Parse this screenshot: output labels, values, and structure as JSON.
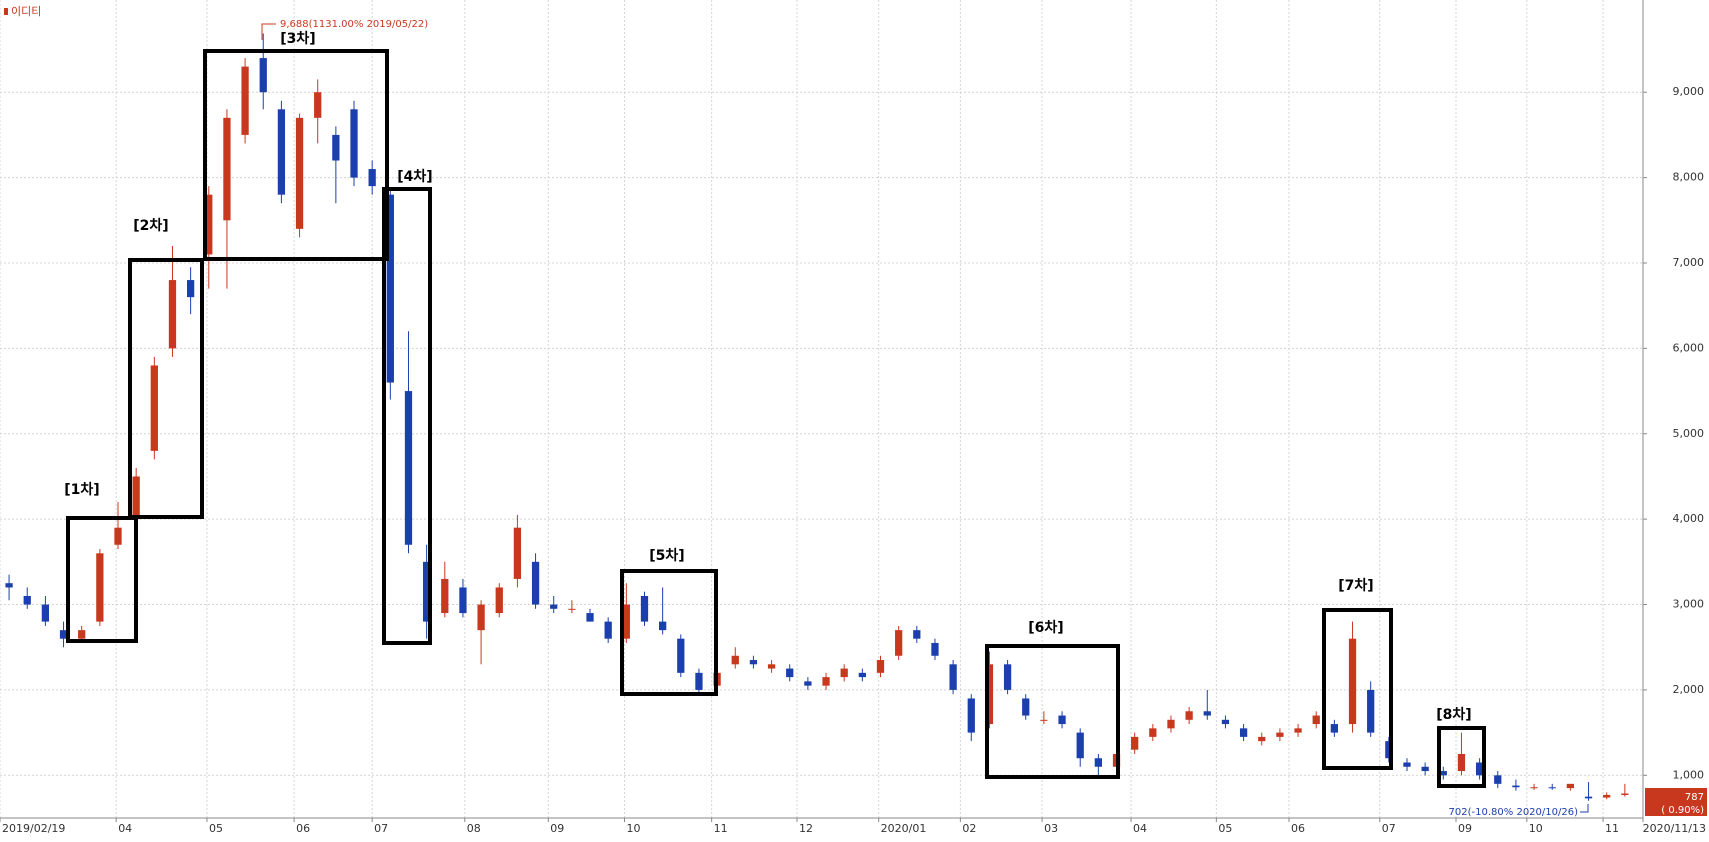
{
  "chart_data": {
    "type": "candlestick",
    "name": "이디티",
    "open": [
      3250,
      3100,
      3000,
      2700,
      2600,
      2800,
      3700,
      4000,
      4800,
      6000,
      6800,
      7100,
      7500,
      8500,
      9400,
      8800,
      7400,
      8700,
      8500,
      8800,
      8100,
      7800,
      5500,
      3500,
      2900,
      3200,
      2700,
      2900,
      3300,
      3500,
      3000,
      2950,
      2900,
      2800,
      2600,
      3100,
      2800,
      2600,
      2200,
      2050,
      2300,
      2350,
      2250,
      2250,
      2100,
      2050,
      2150,
      2200,
      2200,
      2400,
      2700,
      2550,
      2300,
      1900,
      1600,
      2300,
      1900,
      1650,
      1700,
      1500,
      1200,
      1100,
      1300,
      1450,
      1550,
      1650,
      1750,
      1650,
      1550,
      1400,
      1450,
      1500,
      1600,
      1600,
      1600,
      2000,
      1400,
      1150,
      1100,
      1050,
      1050,
      1150,
      1000,
      880,
      860,
      860,
      850,
      750,
      740,
      770
    ],
    "high": [
      3350,
      3200,
      3100,
      2800,
      2750,
      3650,
      4200,
      4600,
      5900,
      7200,
      6950,
      7900,
      8800,
      9400,
      9688,
      8900,
      8750,
      9150,
      8600,
      8900,
      8200,
      7850,
      6200,
      3700,
      3500,
      3300,
      3050,
      3250,
      4050,
      3600,
      3100,
      3050,
      2950,
      2850,
      3250,
      3150,
      3200,
      2650,
      2250,
      2250,
      2500,
      2400,
      2350,
      2300,
      2150,
      2200,
      2300,
      2250,
      2400,
      2750,
      2750,
      2600,
      2350,
      1950,
      2450,
      2350,
      1950,
      1750,
      1750,
      1550,
      1250,
      1300,
      1500,
      1600,
      1700,
      1800,
      2000,
      1700,
      1600,
      1500,
      1550,
      1600,
      1750,
      1650,
      2800,
      2100,
      1450,
      1200,
      1150,
      1100,
      1500,
      1200,
      1050,
      950,
      900,
      900,
      880,
      920,
      800,
      900
    ],
    "low": [
      3050,
      2950,
      2750,
      2500,
      2550,
      2750,
      3650,
      3950,
      4700,
      5900,
      6400,
      6700,
      6700,
      8400,
      8800,
      7700,
      7300,
      8400,
      7700,
      7900,
      7800,
      5400,
      3600,
      2600,
      2850,
      2850,
      2300,
      2850,
      3200,
      2950,
      2900,
      2900,
      2800,
      2550,
      2550,
      2750,
      2650,
      2150,
      1950,
      2000,
      2250,
      2250,
      2200,
      2100,
      2000,
      2000,
      2100,
      2100,
      2150,
      2350,
      2550,
      2350,
      1950,
      1400,
      1550,
      1950,
      1650,
      1600,
      1550,
      1100,
      1000,
      1050,
      1250,
      1400,
      1500,
      1600,
      1650,
      1550,
      1400,
      1350,
      1400,
      1450,
      1550,
      1450,
      1500,
      1450,
      1150,
      1050,
      1000,
      950,
      1000,
      950,
      850,
      820,
      830,
      830,
      820,
      702,
      720,
      750
    ],
    "close": [
      3200,
      3000,
      2800,
      2600,
      2700,
      3600,
      3900,
      4500,
      5800,
      6800,
      6600,
      7800,
      8700,
      9300,
      9000,
      7800,
      8700,
      9000,
      8200,
      8000,
      7900,
      5600,
      3700,
      2800,
      3300,
      2900,
      3000,
      3200,
      3900,
      3000,
      2950,
      2950,
      2800,
      2600,
      3000,
      2800,
      2700,
      2200,
      2000,
      2200,
      2400,
      2300,
      2300,
      2150,
      2050,
      2150,
      2250,
      2150,
      2350,
      2700,
      2600,
      2400,
      2000,
      1500,
      2300,
      2000,
      1700,
      1650,
      1600,
      1200,
      1100,
      1250,
      1450,
      1550,
      1650,
      1750,
      1700,
      1600,
      1450,
      1450,
      1500,
      1550,
      1700,
      1500,
      2600,
      1500,
      1200,
      1100,
      1050,
      1000,
      1250,
      1000,
      900,
      860,
      860,
      850,
      900,
      730,
      770,
      787
    ],
    "up_color": "#c8381f",
    "down_color": "#1c3fae",
    "xlim": [
      0,
      90.5
    ],
    "xticks": [
      {
        "value": 0,
        "label": "2019/02/19"
      },
      {
        "value": 6.4,
        "label": "04"
      },
      {
        "value": 11.4,
        "label": "05"
      },
      {
        "value": 16.2,
        "label": "06"
      },
      {
        "value": 20.5,
        "label": "07"
      },
      {
        "value": 25.6,
        "label": "08"
      },
      {
        "value": 30.2,
        "label": "09"
      },
      {
        "value": 34.4,
        "label": "10"
      },
      {
        "value": 39.2,
        "label": "11"
      },
      {
        "value": 43.9,
        "label": "12"
      },
      {
        "value": 48.4,
        "label": "2020/01"
      },
      {
        "value": 52.9,
        "label": "02"
      },
      {
        "value": 57.4,
        "label": "03"
      },
      {
        "value": 62.3,
        "label": "04"
      },
      {
        "value": 67,
        "label": "05"
      },
      {
        "value": 71,
        "label": "06"
      },
      {
        "value": 76,
        "label": "07"
      },
      {
        "value": 80.2,
        "label": "09"
      },
      {
        "value": 84.1,
        "label": "10"
      },
      {
        "value": 88.3,
        "label": "11"
      },
      {
        "value": 90.5,
        "label": "2020/11/13"
      }
    ],
    "ylim": [
      500,
      10080
    ],
    "yticks": [
      {
        "value": 1000,
        "label": "1,000"
      },
      {
        "value": 2000,
        "label": "2,000"
      },
      {
        "value": 3000,
        "label": "3,000"
      },
      {
        "value": 4000,
        "label": "4,000"
      },
      {
        "value": 5000,
        "label": "5,000"
      },
      {
        "value": 6000,
        "label": "6,000"
      },
      {
        "value": 7000,
        "label": "7,000"
      },
      {
        "value": 8000,
        "label": "8,000"
      },
      {
        "value": 9000,
        "label": "9,000"
      }
    ],
    "grid": true,
    "max_label": "9,688(1131.00% 2019/05/22)",
    "min_label": "702(-10.80% 2020/10/26)",
    "last_change": "( 0.90%)",
    "annotations": [
      "[1차]",
      "[2차]",
      "[3차]",
      "[4차]",
      "[5차]",
      "[6차]",
      "[7차]",
      "[8차]"
    ]
  }
}
